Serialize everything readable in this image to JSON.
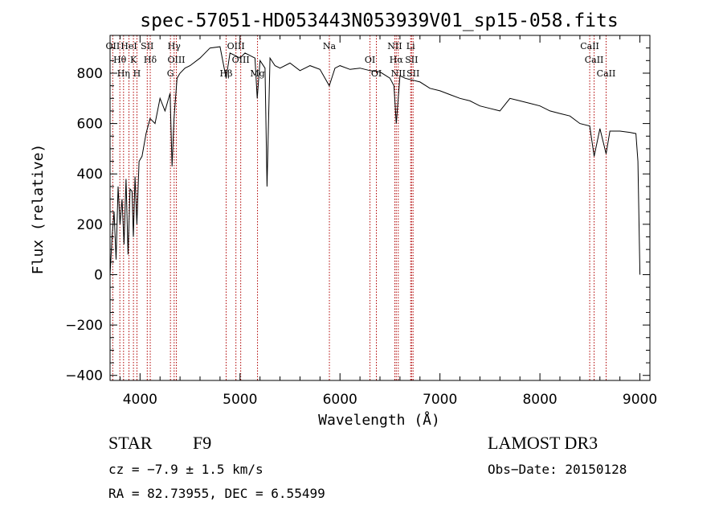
{
  "chart_data": {
    "type": "line",
    "title": "spec-57051-HD053443N053939V01_sp15-058.fits",
    "xlabel": "Wavelength (Å)",
    "ylabel": "Flux (relative)",
    "xlim": [
      3700,
      9100
    ],
    "ylim": [
      -420,
      950
    ],
    "xticks": [
      4000,
      5000,
      6000,
      7000,
      8000,
      9000
    ],
    "yticks": [
      -400,
      -200,
      0,
      200,
      400,
      600,
      800
    ],
    "grid": false,
    "series": [
      {
        "name": "flux",
        "x": [
          3700,
          3720,
          3740,
          3760,
          3780,
          3800,
          3820,
          3840,
          3860,
          3880,
          3900,
          3920,
          3933,
          3950,
          3968,
          3990,
          4020,
          4060,
          4100,
          4150,
          4200,
          4250,
          4300,
          4320,
          4340,
          4370,
          4400,
          4450,
          4500,
          4600,
          4700,
          4800,
          4861,
          4900,
          4950,
          5000,
          5050,
          5100,
          5150,
          5172,
          5200,
          5250,
          5270,
          5300,
          5350,
          5400,
          5500,
          5600,
          5700,
          5800,
          5893,
          5950,
          6000,
          6100,
          6200,
          6300,
          6400,
          6500,
          6540,
          6563,
          6600,
          6650,
          6700,
          6800,
          6900,
          7000,
          7100,
          7200,
          7300,
          7400,
          7500,
          7600,
          7700,
          7800,
          7900,
          8000,
          8100,
          8200,
          8300,
          8400,
          8498,
          8542,
          8600,
          8662,
          8700,
          8800,
          8900,
          8960,
          8980,
          9000
        ],
        "values": [
          0,
          150,
          250,
          60,
          350,
          200,
          300,
          120,
          380,
          80,
          340,
          330,
          150,
          390,
          200,
          450,
          470,
          560,
          620,
          600,
          700,
          650,
          720,
          430,
          620,
          780,
          800,
          820,
          830,
          860,
          900,
          905,
          780,
          880,
          870,
          860,
          880,
          870,
          860,
          700,
          850,
          820,
          350,
          860,
          830,
          820,
          840,
          810,
          830,
          815,
          750,
          820,
          830,
          815,
          820,
          810,
          805,
          780,
          750,
          600,
          790,
          780,
          775,
          765,
          740,
          730,
          715,
          700,
          690,
          670,
          660,
          650,
          700,
          690,
          680,
          670,
          650,
          640,
          630,
          600,
          590,
          470,
          580,
          480,
          570,
          570,
          565,
          560,
          450,
          0
        ]
      }
    ],
    "line_markers": [
      {
        "wl": 3727,
        "label": "OII"
      },
      {
        "wl": 3798,
        "label": "Hθ"
      },
      {
        "wl": 3835,
        "label": "Hη"
      },
      {
        "wl": 3889,
        "label": "HeI"
      },
      {
        "wl": 3934,
        "label": "K"
      },
      {
        "wl": 3969,
        "label": "H"
      },
      {
        "wl": 4072,
        "label": "SII"
      },
      {
        "wl": 4102,
        "label": "Hδ"
      },
      {
        "wl": 4304,
        "label": "G"
      },
      {
        "wl": 4341,
        "label": "Hγ"
      },
      {
        "wl": 4363,
        "label": "OIII"
      },
      {
        "wl": 4861,
        "label": "Hβ"
      },
      {
        "wl": 4959,
        "label": "OIII"
      },
      {
        "wl": 5007,
        "label": "OIII"
      },
      {
        "wl": 5175,
        "label": "Mg"
      },
      {
        "wl": 5894,
        "label": "Na"
      },
      {
        "wl": 6300,
        "label": "OI"
      },
      {
        "wl": 6364,
        "label": "OI"
      },
      {
        "wl": 6548,
        "label": "NII"
      },
      {
        "wl": 6563,
        "label": "Hα"
      },
      {
        "wl": 6583,
        "label": "NII"
      },
      {
        "wl": 6707,
        "label": "Li"
      },
      {
        "wl": 6716,
        "label": "SII"
      },
      {
        "wl": 6731,
        "label": "SII"
      },
      {
        "wl": 8498,
        "label": "CaII"
      },
      {
        "wl": 8542,
        "label": "CaII"
      },
      {
        "wl": 8662,
        "label": "CaII"
      }
    ]
  },
  "info": {
    "object_class": "STAR",
    "subclass": "F9",
    "survey": "LAMOST DR3",
    "cz": "cz = −7.9 ± 1.5 km/s",
    "obs_date": "Obs−Date: 20150128",
    "radec": "RA =  82.73955, DEC =   6.55499"
  },
  "colors": {
    "line": "#000000",
    "marker": "#b00000",
    "background": "#ffffff"
  }
}
